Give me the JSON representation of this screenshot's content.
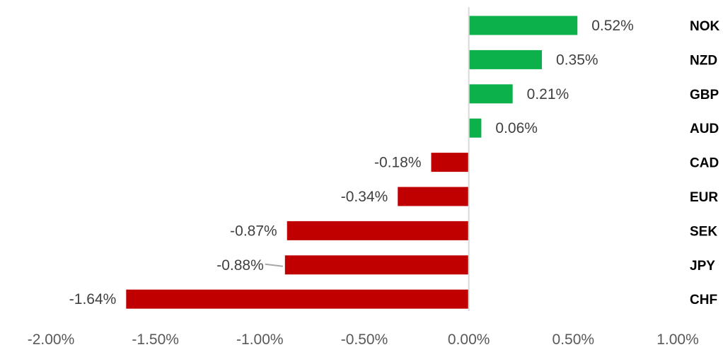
{
  "chart_data": {
    "type": "bar",
    "orientation": "horizontal",
    "categories": [
      "NOK",
      "NZD",
      "GBP",
      "AUD",
      "CAD",
      "EUR",
      "SEK",
      "JPY",
      "CHF"
    ],
    "values": [
      0.52,
      0.35,
      0.21,
      0.06,
      -0.18,
      -0.34,
      -0.87,
      -0.88,
      -1.64
    ],
    "data_labels": [
      "0.52%",
      "0.35%",
      "0.21%",
      "0.06%",
      "-0.18%",
      "-0.34%",
      "-0.87%",
      "-0.88%",
      "-1.64%"
    ],
    "x_ticks": [
      -2.0,
      -1.5,
      -1.0,
      -0.5,
      0.0,
      0.5,
      1.0
    ],
    "x_tick_labels": [
      "-2.00%",
      "-1.50%",
      "-1.00%",
      "-0.50%",
      "0.00%",
      "0.50%",
      "1.00%"
    ],
    "xlim": [
      -2.0,
      1.0
    ],
    "positive_color": "#0db14b",
    "negative_color": "#c00000",
    "axis_color": "#d9d9d9",
    "grid": false,
    "legend": "none",
    "title": "",
    "xlabel": "",
    "ylabel": ""
  }
}
